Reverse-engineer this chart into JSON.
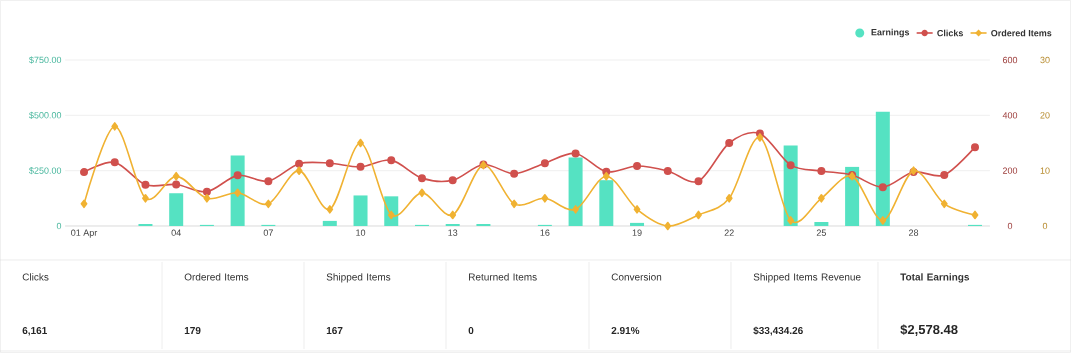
{
  "chart_data": [
    {
      "type": "line",
      "categories": [
        "01 Apr",
        null,
        null,
        "04",
        null,
        null,
        "07",
        null,
        null,
        "10",
        null,
        null,
        "13",
        null,
        null,
        "16",
        null,
        null,
        "19",
        null,
        null,
        "22",
        null,
        null,
        "25",
        null,
        null,
        "28",
        null,
        null
      ],
      "series": [
        {
          "name": "Earnings",
          "type": "bar",
          "color": "#55e2c2",
          "values": [
            0,
            0,
            9,
            148,
            5,
            318,
            5,
            0,
            23,
            138,
            134,
            5,
            9,
            9,
            0,
            5,
            309,
            207,
            14,
            0,
            0,
            0,
            0,
            364,
            18,
            267,
            516,
            0,
            0,
            5
          ]
        },
        {
          "name": "Clicks",
          "type": "line",
          "axis": "y2",
          "color": "#d0504d",
          "marker": "circle",
          "values": [
            195,
            230,
            149,
            150,
            124,
            183,
            162,
            225,
            227,
            214,
            238,
            173,
            165,
            222,
            189,
            227,
            262,
            196,
            217,
            199,
            162,
            300,
            334,
            220,
            199,
            184,
            140,
            195,
            184,
            285
          ]
        },
        {
          "name": "Ordered Items",
          "type": "line",
          "axis": "y3",
          "color": "#f0b232",
          "marker": "diamond",
          "values": [
            4,
            18,
            5,
            9,
            5,
            6,
            4,
            10,
            3,
            15,
            2,
            6,
            2,
            11,
            4,
            5,
            3,
            9,
            3,
            0,
            2,
            5,
            16,
            1,
            5,
            9,
            1,
            10,
            4,
            2
          ]
        }
      ],
      "ylim": [
        0,
        750
      ],
      "yticks": [
        0,
        {
          "value": 250,
          "label": "$250.00"
        },
        {
          "value": 500,
          "label": "$500.00"
        },
        {
          "value": 750,
          "label": "$750.00"
        }
      ],
      "y2lim": [
        0,
        600
      ],
      "y2ticks": [
        0,
        200,
        400,
        600
      ],
      "y3lim": [
        0,
        30
      ],
      "y3ticks": [
        0,
        10,
        20,
        30
      ],
      "grid": "y",
      "legend": "top right"
    },
    {
      "type": "other",
      "categories": [
        "Clicks",
        "Ordered Items",
        "Shipped Items",
        "Returned Items",
        "Conversion",
        "Shipped Items Revenue",
        "Total Earnings"
      ],
      "value_labels": [
        "6,161",
        "179",
        "167",
        "0",
        "2.91%",
        "$33,434.26",
        "$2,578.48"
      ]
    }
  ]
}
